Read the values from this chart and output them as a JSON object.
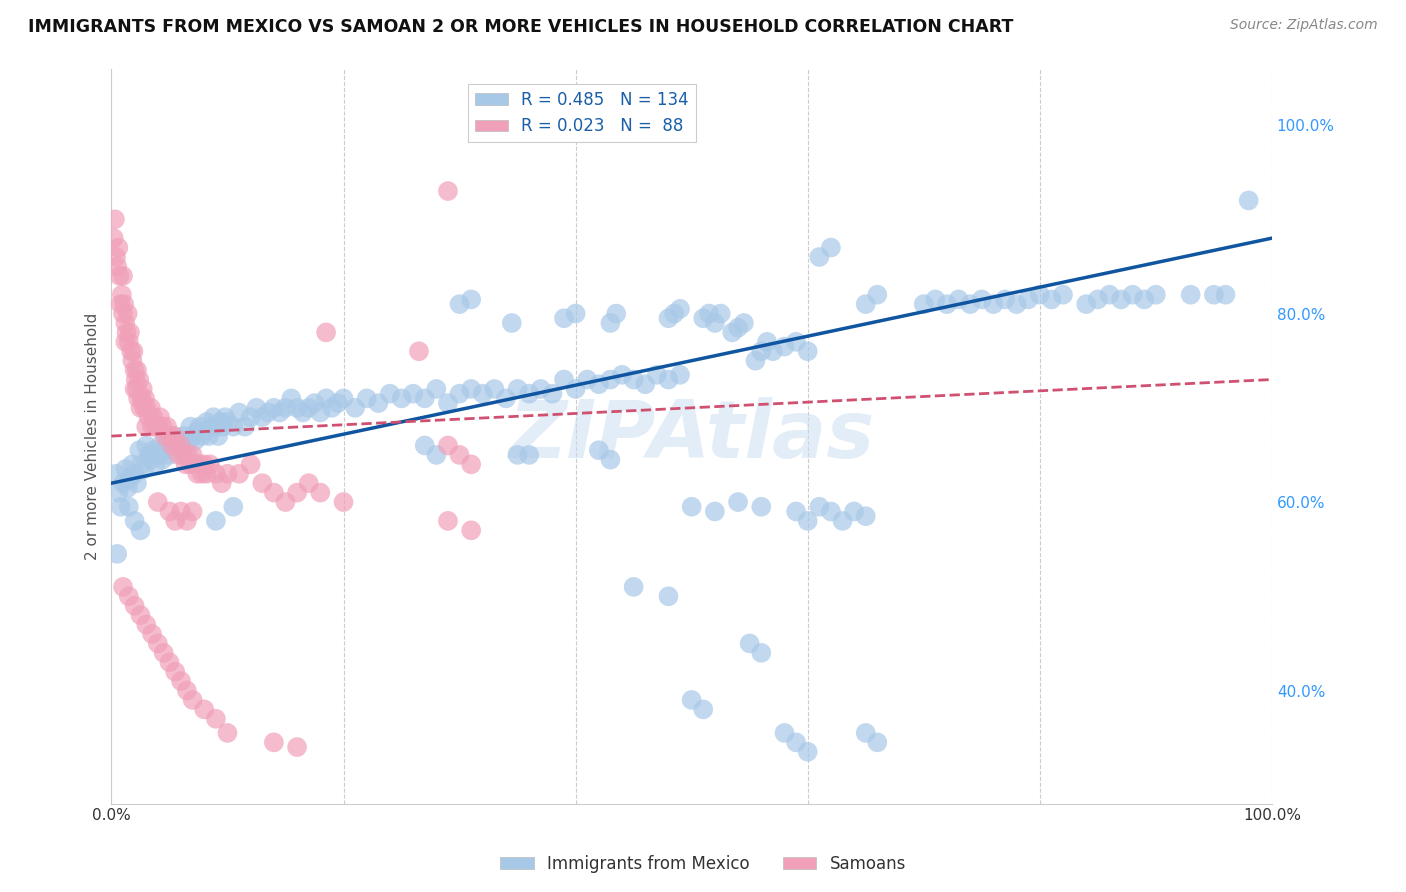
{
  "title": "IMMIGRANTS FROM MEXICO VS SAMOAN 2 OR MORE VEHICLES IN HOUSEHOLD CORRELATION CHART",
  "source": "Source: ZipAtlas.com",
  "ylabel": "2 or more Vehicles in Household",
  "watermark": "ZIPAtlas",
  "legend_blue_R": "0.485",
  "legend_blue_N": "134",
  "legend_pink_R": "0.023",
  "legend_pink_N": " 88",
  "legend_label_blue": "Immigrants from Mexico",
  "legend_label_pink": "Samoans",
  "blue_color": "#a8c8e8",
  "pink_color": "#f0a0b8",
  "trendline_blue": "#1055a0",
  "trendline_pink": "#d05070",
  "background": "#ffffff",
  "xlim": [
    0.0,
    1.0
  ],
  "ylim": [
    0.28,
    1.06
  ],
  "yticks": [
    0.4,
    0.6,
    0.8,
    1.0
  ],
  "ytick_labels": [
    "40.0%",
    "60.0%",
    "80.0%",
    "100.0%"
  ],
  "blue_scatter": [
    [
      0.004,
      0.63
    ],
    [
      0.006,
      0.61
    ],
    [
      0.008,
      0.595
    ],
    [
      0.01,
      0.62
    ],
    [
      0.012,
      0.635
    ],
    [
      0.014,
      0.615
    ],
    [
      0.016,
      0.625
    ],
    [
      0.018,
      0.64
    ],
    [
      0.02,
      0.63
    ],
    [
      0.022,
      0.62
    ],
    [
      0.024,
      0.655
    ],
    [
      0.026,
      0.64
    ],
    [
      0.028,
      0.635
    ],
    [
      0.03,
      0.66
    ],
    [
      0.032,
      0.65
    ],
    [
      0.034,
      0.645
    ],
    [
      0.036,
      0.655
    ],
    [
      0.038,
      0.64
    ],
    [
      0.04,
      0.65
    ],
    [
      0.042,
      0.66
    ],
    [
      0.044,
      0.645
    ],
    [
      0.046,
      0.655
    ],
    [
      0.048,
      0.665
    ],
    [
      0.05,
      0.65
    ],
    [
      0.052,
      0.66
    ],
    [
      0.054,
      0.67
    ],
    [
      0.056,
      0.66
    ],
    [
      0.058,
      0.665
    ],
    [
      0.06,
      0.655
    ],
    [
      0.062,
      0.67
    ],
    [
      0.064,
      0.66
    ],
    [
      0.066,
      0.665
    ],
    [
      0.068,
      0.68
    ],
    [
      0.07,
      0.67
    ],
    [
      0.072,
      0.665
    ],
    [
      0.074,
      0.675
    ],
    [
      0.076,
      0.68
    ],
    [
      0.078,
      0.67
    ],
    [
      0.08,
      0.675
    ],
    [
      0.082,
      0.685
    ],
    [
      0.084,
      0.67
    ],
    [
      0.086,
      0.68
    ],
    [
      0.088,
      0.69
    ],
    [
      0.09,
      0.68
    ],
    [
      0.092,
      0.67
    ],
    [
      0.094,
      0.685
    ],
    [
      0.096,
      0.68
    ],
    [
      0.098,
      0.69
    ],
    [
      0.1,
      0.685
    ],
    [
      0.105,
      0.68
    ],
    [
      0.11,
      0.695
    ],
    [
      0.115,
      0.68
    ],
    [
      0.12,
      0.69
    ],
    [
      0.125,
      0.7
    ],
    [
      0.13,
      0.69
    ],
    [
      0.135,
      0.695
    ],
    [
      0.14,
      0.7
    ],
    [
      0.145,
      0.695
    ],
    [
      0.15,
      0.7
    ],
    [
      0.155,
      0.71
    ],
    [
      0.16,
      0.7
    ],
    [
      0.165,
      0.695
    ],
    [
      0.17,
      0.7
    ],
    [
      0.175,
      0.705
    ],
    [
      0.18,
      0.695
    ],
    [
      0.185,
      0.71
    ],
    [
      0.19,
      0.7
    ],
    [
      0.195,
      0.705
    ],
    [
      0.2,
      0.71
    ],
    [
      0.21,
      0.7
    ],
    [
      0.22,
      0.71
    ],
    [
      0.23,
      0.705
    ],
    [
      0.24,
      0.715
    ],
    [
      0.25,
      0.71
    ],
    [
      0.26,
      0.715
    ],
    [
      0.27,
      0.71
    ],
    [
      0.28,
      0.72
    ],
    [
      0.29,
      0.705
    ],
    [
      0.3,
      0.715
    ],
    [
      0.31,
      0.72
    ],
    [
      0.32,
      0.715
    ],
    [
      0.33,
      0.72
    ],
    [
      0.34,
      0.71
    ],
    [
      0.35,
      0.72
    ],
    [
      0.36,
      0.715
    ],
    [
      0.37,
      0.72
    ],
    [
      0.38,
      0.715
    ],
    [
      0.39,
      0.73
    ],
    [
      0.4,
      0.72
    ],
    [
      0.41,
      0.73
    ],
    [
      0.42,
      0.725
    ],
    [
      0.43,
      0.73
    ],
    [
      0.44,
      0.735
    ],
    [
      0.45,
      0.73
    ],
    [
      0.46,
      0.725
    ],
    [
      0.47,
      0.735
    ],
    [
      0.48,
      0.73
    ],
    [
      0.49,
      0.735
    ],
    [
      0.3,
      0.81
    ],
    [
      0.31,
      0.815
    ],
    [
      0.345,
      0.79
    ],
    [
      0.39,
      0.795
    ],
    [
      0.4,
      0.8
    ],
    [
      0.43,
      0.79
    ],
    [
      0.435,
      0.8
    ],
    [
      0.48,
      0.795
    ],
    [
      0.485,
      0.8
    ],
    [
      0.49,
      0.805
    ],
    [
      0.51,
      0.795
    ],
    [
      0.515,
      0.8
    ],
    [
      0.52,
      0.79
    ],
    [
      0.525,
      0.8
    ],
    [
      0.535,
      0.78
    ],
    [
      0.54,
      0.785
    ],
    [
      0.545,
      0.79
    ],
    [
      0.555,
      0.75
    ],
    [
      0.56,
      0.76
    ],
    [
      0.565,
      0.77
    ],
    [
      0.57,
      0.76
    ],
    [
      0.58,
      0.765
    ],
    [
      0.59,
      0.77
    ],
    [
      0.6,
      0.76
    ],
    [
      0.61,
      0.86
    ],
    [
      0.62,
      0.87
    ],
    [
      0.65,
      0.81
    ],
    [
      0.66,
      0.82
    ],
    [
      0.7,
      0.81
    ],
    [
      0.71,
      0.815
    ],
    [
      0.72,
      0.81
    ],
    [
      0.73,
      0.815
    ],
    [
      0.74,
      0.81
    ],
    [
      0.75,
      0.815
    ],
    [
      0.76,
      0.81
    ],
    [
      0.77,
      0.815
    ],
    [
      0.78,
      0.81
    ],
    [
      0.79,
      0.815
    ],
    [
      0.8,
      0.82
    ],
    [
      0.81,
      0.815
    ],
    [
      0.82,
      0.82
    ],
    [
      0.84,
      0.81
    ],
    [
      0.85,
      0.815
    ],
    [
      0.86,
      0.82
    ],
    [
      0.87,
      0.815
    ],
    [
      0.88,
      0.82
    ],
    [
      0.89,
      0.815
    ],
    [
      0.9,
      0.82
    ],
    [
      0.93,
      0.82
    ],
    [
      0.95,
      0.82
    ],
    [
      0.96,
      0.82
    ],
    [
      0.98,
      0.92
    ],
    [
      0.005,
      0.545
    ],
    [
      0.015,
      0.595
    ],
    [
      0.02,
      0.58
    ],
    [
      0.025,
      0.57
    ],
    [
      0.09,
      0.58
    ],
    [
      0.105,
      0.595
    ],
    [
      0.27,
      0.66
    ],
    [
      0.28,
      0.65
    ],
    [
      0.35,
      0.65
    ],
    [
      0.36,
      0.65
    ],
    [
      0.42,
      0.655
    ],
    [
      0.43,
      0.645
    ],
    [
      0.5,
      0.595
    ],
    [
      0.52,
      0.59
    ],
    [
      0.54,
      0.6
    ],
    [
      0.56,
      0.595
    ],
    [
      0.59,
      0.59
    ],
    [
      0.6,
      0.58
    ],
    [
      0.61,
      0.595
    ],
    [
      0.62,
      0.59
    ],
    [
      0.63,
      0.58
    ],
    [
      0.64,
      0.59
    ],
    [
      0.65,
      0.585
    ],
    [
      0.45,
      0.51
    ],
    [
      0.48,
      0.5
    ],
    [
      0.5,
      0.39
    ],
    [
      0.51,
      0.38
    ],
    [
      0.55,
      0.45
    ],
    [
      0.56,
      0.44
    ],
    [
      0.58,
      0.355
    ],
    [
      0.59,
      0.345
    ],
    [
      0.6,
      0.335
    ],
    [
      0.65,
      0.355
    ],
    [
      0.66,
      0.345
    ]
  ],
  "pink_scatter": [
    [
      0.002,
      0.88
    ],
    [
      0.003,
      0.9
    ],
    [
      0.004,
      0.86
    ],
    [
      0.005,
      0.85
    ],
    [
      0.006,
      0.87
    ],
    [
      0.007,
      0.84
    ],
    [
      0.008,
      0.81
    ],
    [
      0.009,
      0.82
    ],
    [
      0.01,
      0.84
    ],
    [
      0.01,
      0.8
    ],
    [
      0.011,
      0.81
    ],
    [
      0.012,
      0.79
    ],
    [
      0.012,
      0.77
    ],
    [
      0.013,
      0.78
    ],
    [
      0.014,
      0.8
    ],
    [
      0.015,
      0.77
    ],
    [
      0.016,
      0.78
    ],
    [
      0.017,
      0.76
    ],
    [
      0.018,
      0.75
    ],
    [
      0.019,
      0.76
    ],
    [
      0.02,
      0.74
    ],
    [
      0.02,
      0.72
    ],
    [
      0.021,
      0.73
    ],
    [
      0.022,
      0.74
    ],
    [
      0.022,
      0.72
    ],
    [
      0.023,
      0.71
    ],
    [
      0.024,
      0.73
    ],
    [
      0.025,
      0.7
    ],
    [
      0.026,
      0.71
    ],
    [
      0.027,
      0.72
    ],
    [
      0.028,
      0.7
    ],
    [
      0.029,
      0.71
    ],
    [
      0.03,
      0.7
    ],
    [
      0.03,
      0.68
    ],
    [
      0.032,
      0.69
    ],
    [
      0.034,
      0.7
    ],
    [
      0.035,
      0.68
    ],
    [
      0.036,
      0.69
    ],
    [
      0.038,
      0.68
    ],
    [
      0.04,
      0.68
    ],
    [
      0.042,
      0.69
    ],
    [
      0.044,
      0.68
    ],
    [
      0.046,
      0.67
    ],
    [
      0.048,
      0.68
    ],
    [
      0.05,
      0.67
    ],
    [
      0.052,
      0.66
    ],
    [
      0.054,
      0.67
    ],
    [
      0.056,
      0.66
    ],
    [
      0.058,
      0.65
    ],
    [
      0.06,
      0.66
    ],
    [
      0.062,
      0.65
    ],
    [
      0.064,
      0.64
    ],
    [
      0.066,
      0.65
    ],
    [
      0.068,
      0.64
    ],
    [
      0.07,
      0.65
    ],
    [
      0.072,
      0.64
    ],
    [
      0.074,
      0.63
    ],
    [
      0.076,
      0.64
    ],
    [
      0.078,
      0.63
    ],
    [
      0.08,
      0.64
    ],
    [
      0.082,
      0.63
    ],
    [
      0.085,
      0.64
    ],
    [
      0.09,
      0.63
    ],
    [
      0.095,
      0.62
    ],
    [
      0.1,
      0.63
    ],
    [
      0.11,
      0.63
    ],
    [
      0.12,
      0.64
    ],
    [
      0.13,
      0.62
    ],
    [
      0.14,
      0.61
    ],
    [
      0.15,
      0.6
    ],
    [
      0.16,
      0.61
    ],
    [
      0.17,
      0.62
    ],
    [
      0.18,
      0.61
    ],
    [
      0.2,
      0.6
    ],
    [
      0.04,
      0.6
    ],
    [
      0.05,
      0.59
    ],
    [
      0.055,
      0.58
    ],
    [
      0.06,
      0.59
    ],
    [
      0.065,
      0.58
    ],
    [
      0.07,
      0.59
    ],
    [
      0.01,
      0.51
    ],
    [
      0.015,
      0.5
    ],
    [
      0.02,
      0.49
    ],
    [
      0.025,
      0.48
    ],
    [
      0.03,
      0.47
    ],
    [
      0.035,
      0.46
    ],
    [
      0.04,
      0.45
    ],
    [
      0.045,
      0.44
    ],
    [
      0.05,
      0.43
    ],
    [
      0.055,
      0.42
    ],
    [
      0.06,
      0.41
    ],
    [
      0.065,
      0.4
    ],
    [
      0.07,
      0.39
    ],
    [
      0.08,
      0.38
    ],
    [
      0.09,
      0.37
    ],
    [
      0.1,
      0.355
    ],
    [
      0.14,
      0.345
    ],
    [
      0.16,
      0.34
    ],
    [
      0.29,
      0.93
    ],
    [
      0.185,
      0.78
    ],
    [
      0.265,
      0.76
    ],
    [
      0.29,
      0.66
    ],
    [
      0.3,
      0.65
    ],
    [
      0.31,
      0.64
    ],
    [
      0.29,
      0.58
    ],
    [
      0.31,
      0.57
    ]
  ]
}
